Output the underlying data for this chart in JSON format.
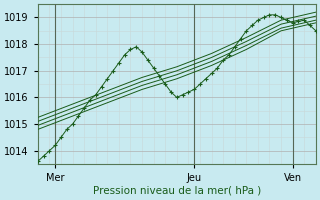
{
  "title": "",
  "xlabel": "Pression niveau de la mer( hPa )",
  "background_color": "#c8eaf0",
  "grid_color": "#b0b0b0",
  "line_color": "#1a5c1a",
  "ylim": [
    1013.5,
    1019.5
  ],
  "xlim": [
    0,
    48
  ],
  "yticks": [
    1014,
    1015,
    1016,
    1017,
    1018,
    1019
  ],
  "xtick_positions": [
    3,
    27,
    44
  ],
  "xtick_labels": [
    "Mer",
    "Jeu",
    "Ven"
  ],
  "vlines": [
    3,
    27,
    44
  ],
  "lines": [
    {
      "x": [
        0,
        1,
        2,
        3,
        4,
        5,
        6,
        7,
        8,
        9,
        10,
        11,
        12,
        13,
        14,
        15,
        16,
        17,
        18,
        19,
        20,
        21,
        22,
        23,
        24,
        25,
        26,
        27,
        28,
        29,
        30,
        31,
        32,
        33,
        34,
        35,
        36,
        37,
        38,
        39,
        40,
        41,
        42,
        43,
        44,
        45,
        46,
        47,
        48
      ],
      "y": [
        1013.6,
        1013.8,
        1014.0,
        1014.2,
        1014.5,
        1014.8,
        1015.0,
        1015.3,
        1015.6,
        1015.9,
        1016.1,
        1016.4,
        1016.7,
        1017.0,
        1017.3,
        1017.6,
        1017.8,
        1017.9,
        1017.7,
        1017.4,
        1017.1,
        1016.8,
        1016.5,
        1016.2,
        1016.0,
        1016.1,
        1016.2,
        1016.3,
        1016.5,
        1016.7,
        1016.9,
        1017.1,
        1017.4,
        1017.6,
        1017.9,
        1018.2,
        1018.5,
        1018.7,
        1018.9,
        1019.0,
        1019.1,
        1019.1,
        1019.0,
        1018.9,
        1018.8,
        1018.85,
        1018.9,
        1018.7,
        1018.5
      ],
      "marker": "+"
    },
    {
      "x": [
        0,
        6,
        12,
        18,
        24,
        30,
        36,
        42,
        48
      ],
      "y": [
        1014.8,
        1015.3,
        1015.8,
        1016.3,
        1016.7,
        1017.2,
        1017.8,
        1018.5,
        1018.8
      ],
      "marker": null
    },
    {
      "x": [
        0,
        6,
        12,
        18,
        24,
        30,
        36,
        42,
        48
      ],
      "y": [
        1014.95,
        1015.45,
        1015.95,
        1016.45,
        1016.85,
        1017.35,
        1017.95,
        1018.6,
        1018.9
      ],
      "marker": null
    },
    {
      "x": [
        0,
        6,
        12,
        18,
        24,
        30,
        36,
        42,
        48
      ],
      "y": [
        1015.1,
        1015.6,
        1016.1,
        1016.6,
        1017.0,
        1017.5,
        1018.1,
        1018.75,
        1019.05
      ],
      "marker": null
    },
    {
      "x": [
        0,
        6,
        12,
        18,
        24,
        30,
        36,
        42,
        48
      ],
      "y": [
        1015.25,
        1015.75,
        1016.25,
        1016.75,
        1017.15,
        1017.65,
        1018.25,
        1018.9,
        1019.2
      ],
      "marker": null
    }
  ]
}
